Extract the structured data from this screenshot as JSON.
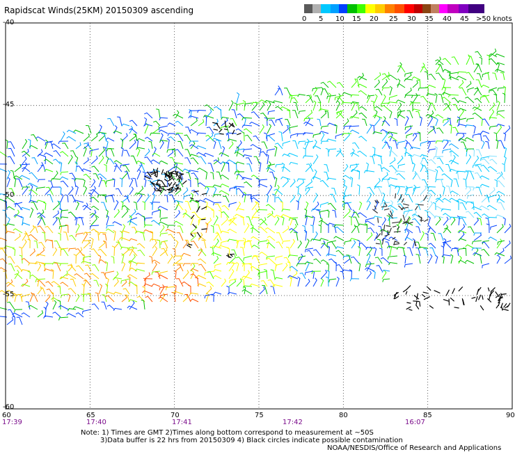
{
  "title": "Rapidscat Winds(25KM) 20150309 ascending",
  "colorbar": {
    "colors": [
      "#5a5a5a",
      "#b0b0b0",
      "#00a0ff",
      "#00c8ff",
      "#0040ff",
      "#00ffb0",
      "#00c000",
      "#40ff00",
      "#ffcc00",
      "#ffff00",
      "#ff8000",
      "#ff5000",
      "#ff0000",
      "#c00000",
      "#8b4513",
      "#c08060",
      "#ff00ff",
      "#c000c0",
      "#400080"
    ],
    "labels": [
      "0",
      "5",
      "10",
      "15",
      "20",
      "25",
      "30",
      "35",
      "40",
      "45",
      ">50 knots"
    ]
  },
  "map": {
    "lon_ticks": [
      "60",
      "65",
      "70",
      "75",
      "80",
      "85",
      "90"
    ],
    "lat_ticks": [
      "-40",
      "-45",
      "-50",
      "-55",
      "-60"
    ],
    "lon_range": [
      60,
      90
    ],
    "lat_range": [
      -60,
      -40
    ],
    "grid": true,
    "time_labels": [
      "17:39",
      "17:40",
      "17:41",
      "17:42",
      "16:07"
    ],
    "time_label_lons": [
      60,
      65,
      70,
      77,
      84
    ]
  },
  "notes": {
    "line1": "Note: 1) Times are GMT 2)Times along bottom correspond to measurement at ~50S",
    "line2": "3)Data buffer is 22 hrs from 20150309 4) Black circles indicate possible contamination",
    "credit": "NOAA/NESDIS/Office of Research and Applications"
  }
}
